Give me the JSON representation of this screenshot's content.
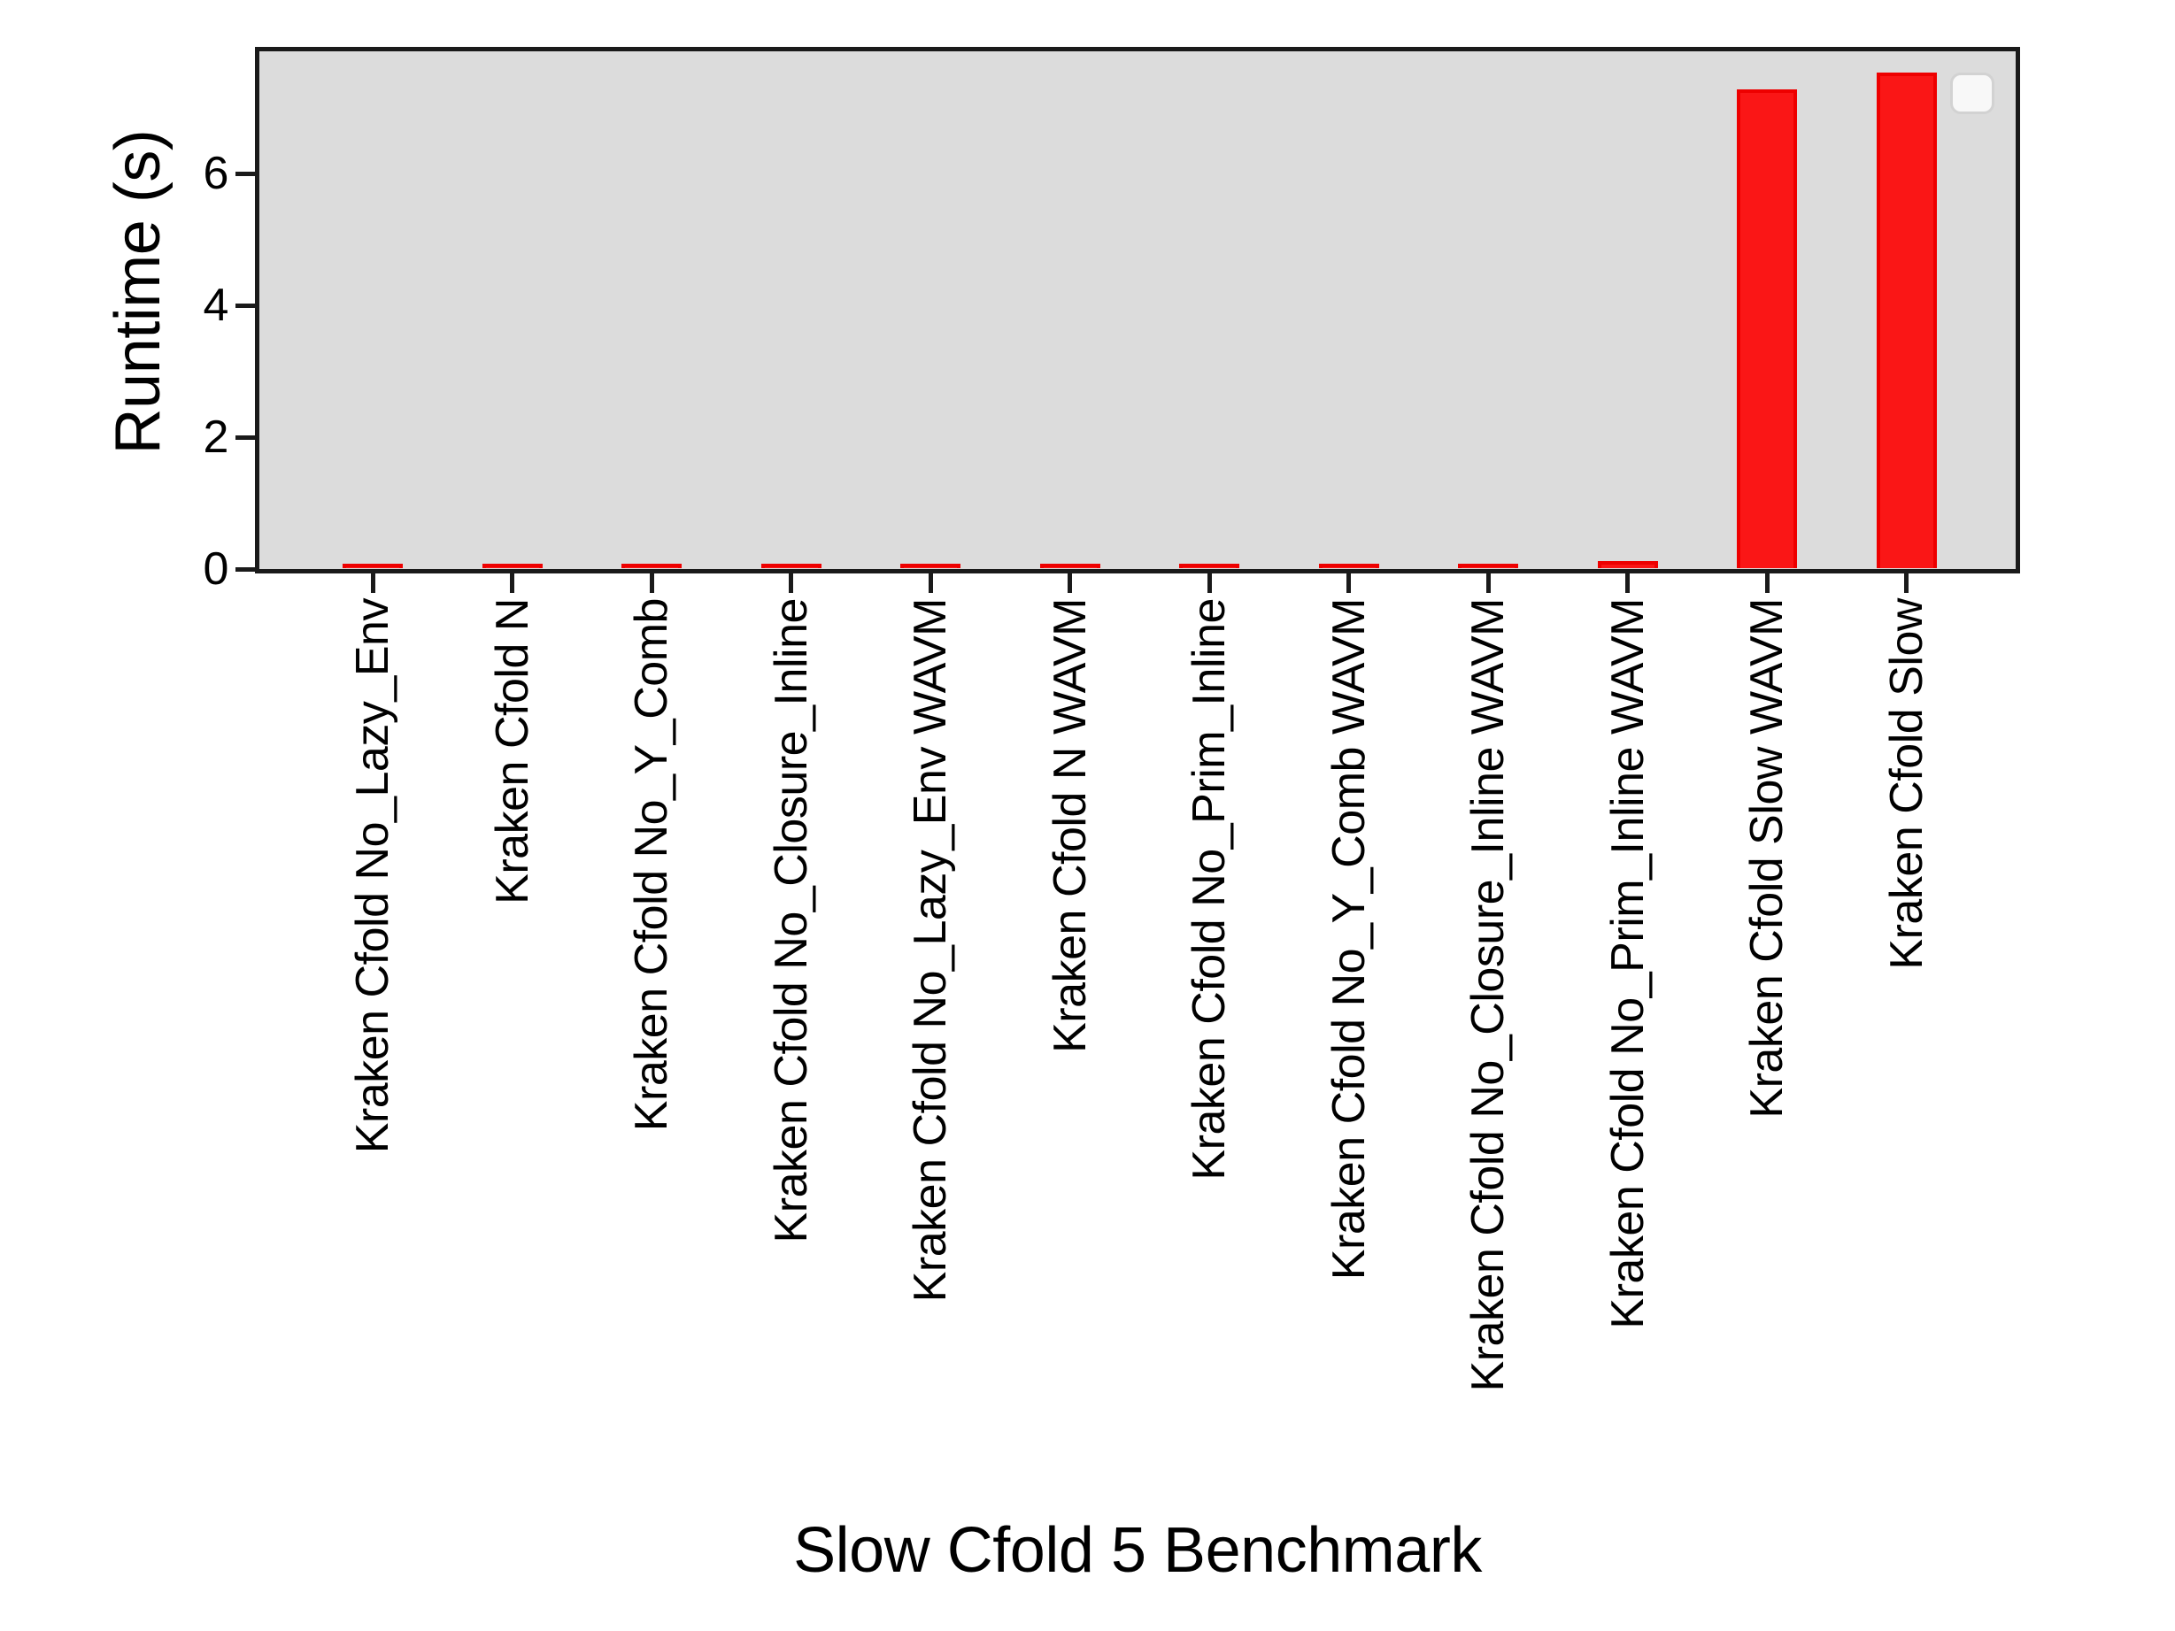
{
  "chart_data": {
    "type": "bar",
    "title": "",
    "xlabel": "Slow Cfold 5 Benchmark",
    "ylabel": "Runtime (s)",
    "categories": [
      "Kraken Cfold No_Lazy_Env",
      "Kraken Cfold N",
      "Kraken Cfold No_Y_Comb",
      "Kraken Cfold No_Closure_Inline",
      "Kraken Cfold No_Lazy_Env WAVM",
      "Kraken Cfold N WAVM",
      "Kraken Cfold No_Prim_Inline",
      "Kraken Cfold No_Y_Comb WAVM",
      "Kraken Cfold No_Closure_Inline WAVM",
      "Kraken Cfold No_Prim_Inline WAVM",
      "Kraken Cfold Slow WAVM",
      "Kraken Cfold Slow"
    ],
    "values": [
      0.05,
      0.05,
      0.05,
      0.06,
      0.06,
      0.06,
      0.07,
      0.07,
      0.07,
      0.11,
      7.26,
      7.52
    ],
    "yticks": [
      0,
      2,
      4,
      6
    ],
    "ylim": [
      0,
      7.9
    ],
    "grid": false,
    "legend": {
      "visible": true,
      "entries": [],
      "position": "upper right"
    },
    "colors": {
      "bar_fill": "#fa1616",
      "bar_edge": "#ee0000",
      "plot_background": "#dcdcdc",
      "figure_background": "#ffffff",
      "axis": "#1a1a1a"
    }
  }
}
